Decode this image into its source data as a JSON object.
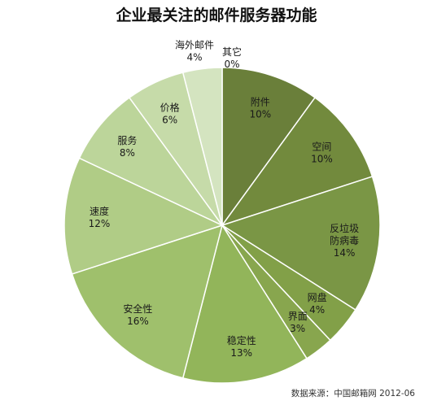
{
  "chart_data": {
    "type": "pie",
    "title": "企业最关注的邮件服务器功能",
    "categories": [
      "附件",
      "空间",
      "反垃圾防病毒",
      "网盘",
      "界面",
      "稳定性",
      "安全性",
      "速度",
      "服务",
      "价格",
      "海外邮件",
      "其它"
    ],
    "values": [
      10,
      10,
      14,
      4,
      3,
      13,
      16,
      12,
      8,
      6,
      4,
      0
    ],
    "value_labels": [
      "10%",
      "10%",
      "14%",
      "4%",
      "3%",
      "13%",
      "16%",
      "12%",
      "8%",
      "6%",
      "4%",
      "0%"
    ],
    "label_lines": [
      [
        "附件"
      ],
      [
        "空间"
      ],
      [
        "反垃圾",
        "防病毒"
      ],
      [
        "网盘"
      ],
      [
        "界面"
      ],
      [
        "稳定性"
      ],
      [
        "安全性"
      ],
      [
        "速度"
      ],
      [
        "服务"
      ],
      [
        "价格"
      ],
      [
        "海外邮件"
      ],
      [
        "其它"
      ]
    ],
    "colors": [
      "#6a7f3a",
      "#728a3d",
      "#7a9645",
      "#82a048",
      "#88a64e",
      "#92b55a",
      "#9fc06c",
      "#b0cc86",
      "#bcd59a",
      "#c6dba9",
      "#d4e4c0",
      "#e0ebd2"
    ],
    "source": "数据来源：中国邮箱网    2012-06"
  }
}
